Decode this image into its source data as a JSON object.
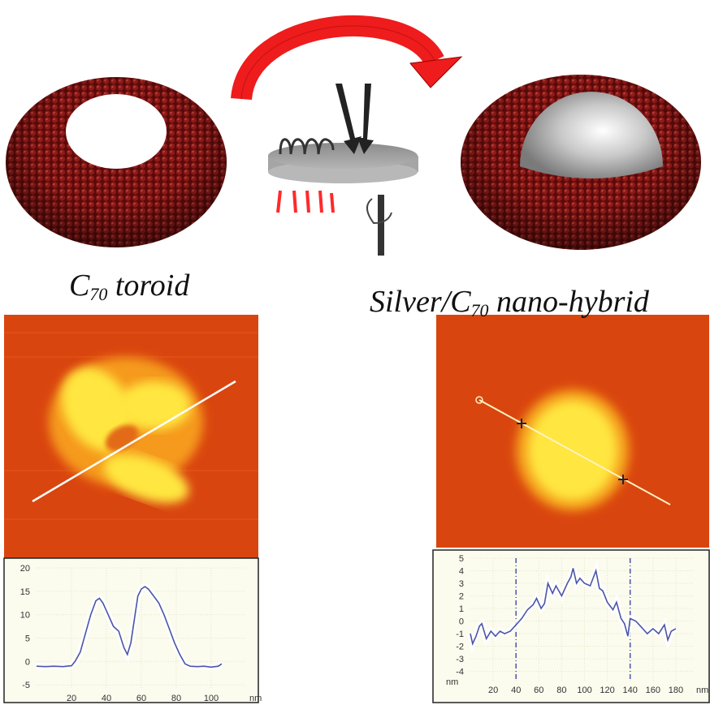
{
  "labels": {
    "left": {
      "prefix": "C",
      "sub": "70",
      "suffix": " toroid"
    },
    "right": {
      "prefix": "Silver/C",
      "sub": "70",
      "suffix": " nano-hybrid"
    }
  },
  "colors": {
    "toroid": "#7a1212",
    "arrow": "#ee1c1c",
    "afm_base": "#d94a12",
    "afm_high": "#ffe640",
    "profile_line": "#4a55a8",
    "chart_bg": "#fbfbee"
  },
  "chart_data": [
    {
      "type": "line",
      "title": "",
      "xlabel": "nm",
      "ylabel": "",
      "xlim": [
        0,
        120
      ],
      "ylim": [
        -6,
        20
      ],
      "xticks": [
        20,
        40,
        60,
        80,
        100
      ],
      "yticks": [
        -5,
        0,
        5,
        10,
        15,
        20
      ],
      "grid": true,
      "x": [
        0,
        5,
        10,
        15,
        20,
        22,
        25,
        28,
        31,
        34,
        36,
        38,
        41,
        44,
        47,
        50,
        52,
        54,
        56,
        58,
        60,
        62,
        64,
        67,
        70,
        73,
        76,
        79,
        82,
        85,
        88,
        92,
        96,
        100,
        104,
        106
      ],
      "y": [
        -1,
        -1.1,
        -1,
        -1.1,
        -0.9,
        0,
        2,
        6,
        10,
        13,
        13.5,
        12.5,
        10,
        7.5,
        6.5,
        3,
        1.5,
        4,
        9,
        14,
        15.5,
        16,
        15.5,
        14,
        12.5,
        10,
        7,
        4,
        1.5,
        -0.5,
        -1,
        -1.1,
        -1,
        -1.2,
        -1,
        -0.5
      ]
    },
    {
      "type": "line",
      "title": "",
      "xlabel": "nm",
      "ylabel": "nm",
      "xlim": [
        0,
        195
      ],
      "ylim": [
        -4.8,
        5
      ],
      "xticks": [
        20,
        40,
        60,
        80,
        100,
        120,
        140,
        160,
        180
      ],
      "yticks": [
        -4,
        -3,
        -2,
        -1,
        0,
        1,
        2,
        3,
        4,
        5
      ],
      "grid": true,
      "markers_x": [
        40,
        140
      ],
      "x": [
        0,
        2,
        5,
        8,
        10,
        12,
        14,
        18,
        22,
        26,
        30,
        35,
        40,
        45,
        50,
        55,
        58,
        62,
        65,
        68,
        72,
        75,
        80,
        85,
        88,
        90,
        93,
        96,
        100,
        105,
        110,
        113,
        116,
        120,
        125,
        128,
        132,
        135,
        138,
        140,
        145,
        150,
        155,
        160,
        165,
        170,
        173,
        176,
        180
      ],
      "y": [
        -1,
        -1.8,
        -1.2,
        -0.4,
        -0.2,
        -0.8,
        -1.4,
        -0.8,
        -1.2,
        -0.8,
        -1,
        -0.8,
        -0.3,
        0.2,
        0.9,
        1.3,
        1.8,
        1,
        1.4,
        3,
        2.2,
        2.8,
        2,
        3,
        3.5,
        4.2,
        3,
        3.4,
        3,
        2.8,
        4,
        2.6,
        2.4,
        1.5,
        0.9,
        1.5,
        0.2,
        -0.2,
        -1.2,
        0.2,
        0,
        -0.5,
        -1,
        -0.6,
        -1,
        -0.3,
        -1.5,
        -0.8,
        -0.6
      ]
    }
  ]
}
